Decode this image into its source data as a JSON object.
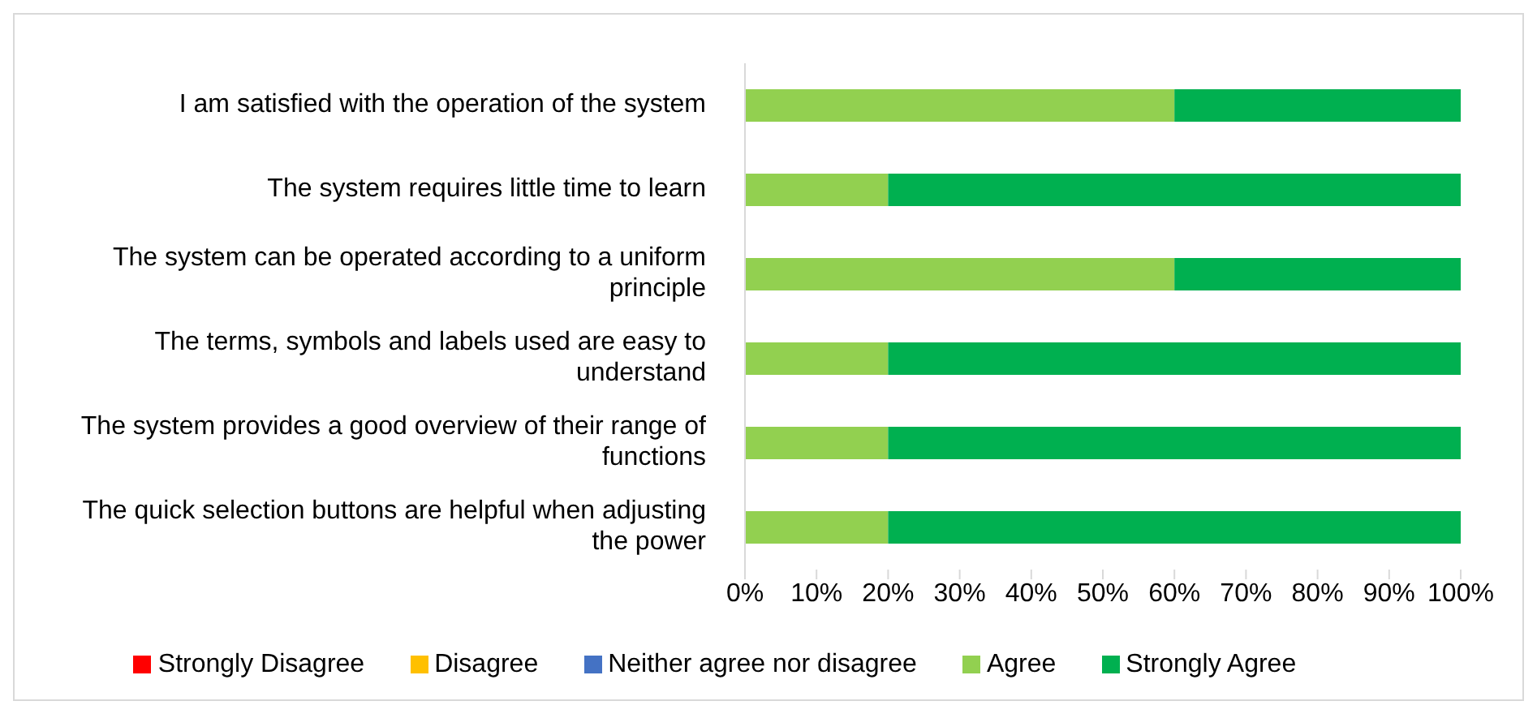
{
  "chart_data": {
    "type": "bar",
    "orientation": "horizontal",
    "stacked": true,
    "categories": [
      "I am satisfied with the operation of the system",
      "The system requires little time to learn",
      "The system can be operated according to a uniform principle",
      "The terms, symbols and labels used are easy to understand",
      "The system provides a good overview of their range of functions",
      "The quick selection buttons are helpful when adjusting the power"
    ],
    "series": [
      {
        "name": "Strongly Disagree",
        "color": "#ff0000",
        "values": [
          0,
          0,
          0,
          0,
          0,
          0
        ]
      },
      {
        "name": "Disagree",
        "color": "#ffc000",
        "values": [
          0,
          0,
          0,
          0,
          0,
          0
        ]
      },
      {
        "name": "Neither agree nor disagree",
        "color": "#4472c4",
        "values": [
          0,
          0,
          0,
          0,
          0,
          0
        ]
      },
      {
        "name": "Agree",
        "color": "#92d050",
        "values": [
          60,
          20,
          60,
          20,
          20,
          20
        ]
      },
      {
        "name": "Strongly Agree",
        "color": "#00b050",
        "values": [
          40,
          80,
          40,
          80,
          80,
          80
        ]
      }
    ],
    "xlim": [
      0,
      100
    ],
    "xticks": [
      {
        "value": 0,
        "label": "0%"
      },
      {
        "value": 10,
        "label": "10%"
      },
      {
        "value": 20,
        "label": "20%"
      },
      {
        "value": 30,
        "label": "30%"
      },
      {
        "value": 40,
        "label": "40%"
      },
      {
        "value": 50,
        "label": "50%"
      },
      {
        "value": 60,
        "label": "60%"
      },
      {
        "value": 70,
        "label": "70%"
      },
      {
        "value": 80,
        "label": "80%"
      },
      {
        "value": 90,
        "label": "90%"
      },
      {
        "value": 100,
        "label": "100%"
      }
    ],
    "grid": false,
    "legend": "bottom"
  }
}
